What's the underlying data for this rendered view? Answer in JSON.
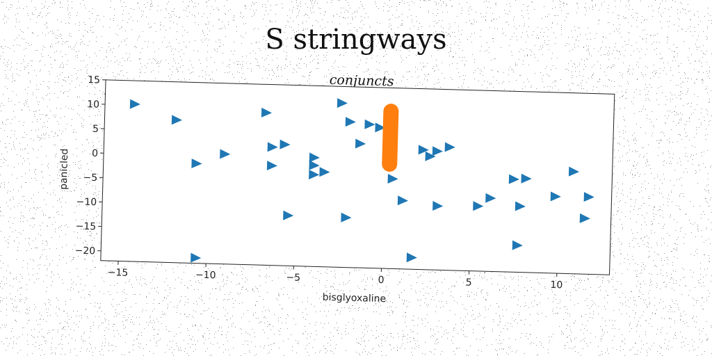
{
  "page": {
    "title": "S stringways"
  },
  "chart_data": {
    "type": "scatter",
    "title": "conjuncts",
    "xlabel": "bisglyoxaline",
    "ylabel": "panicled",
    "xlim": [
      -16,
      13
    ],
    "ylim": [
      -22,
      15
    ],
    "xticks": [
      -15,
      -10,
      -5,
      0,
      5,
      10
    ],
    "yticks": [
      15,
      10,
      5,
      0,
      -5,
      -10,
      -15,
      -20
    ],
    "grid": false,
    "series": [
      {
        "marker": "triangle-right",
        "color": "#1f77b4",
        "points": [
          [
            -14.3,
            10.2
          ],
          [
            -11.9,
            7.2
          ],
          [
            -10.7,
            -1.6
          ],
          [
            -10.6,
            -20.9
          ],
          [
            -9.1,
            0.5
          ],
          [
            -6.8,
            9.2
          ],
          [
            -6.4,
            2.2
          ],
          [
            -6.4,
            -1.6
          ],
          [
            -5.7,
            2.8
          ],
          [
            -5.4,
            -11.7
          ],
          [
            -4.0,
            0.3
          ],
          [
            -4.0,
            -1.3
          ],
          [
            -4.0,
            -3.2
          ],
          [
            -3.4,
            -2.6
          ],
          [
            -2.5,
            11.6
          ],
          [
            -2.1,
            -11.8
          ],
          [
            -2.0,
            7.8
          ],
          [
            -1.4,
            3.4
          ],
          [
            -0.9,
            7.4
          ],
          [
            -0.3,
            6.8
          ],
          [
            0.4,
            2.7
          ],
          [
            0.5,
            -3.6
          ],
          [
            1.1,
            -8.0
          ],
          [
            1.7,
            -19.6
          ],
          [
            2.2,
            2.5
          ],
          [
            2.6,
            1.2
          ],
          [
            3.0,
            2.3
          ],
          [
            3.1,
            -8.9
          ],
          [
            3.7,
            3.2
          ],
          [
            5.4,
            -8.7
          ],
          [
            6.1,
            -7.0
          ],
          [
            7.4,
            -3.0
          ],
          [
            7.7,
            -16.5
          ],
          [
            7.8,
            -8.5
          ],
          [
            8.1,
            -2.8
          ],
          [
            9.8,
            -6.3
          ],
          [
            10.8,
            -1.1
          ],
          [
            11.5,
            -10.6
          ],
          [
            11.7,
            -6.2
          ]
        ]
      },
      {
        "marker": "line",
        "color": "#ff7f0e",
        "points": [
          [
            0.3,
            10.2
          ],
          [
            0.3,
            -0.6
          ]
        ]
      }
    ]
  }
}
